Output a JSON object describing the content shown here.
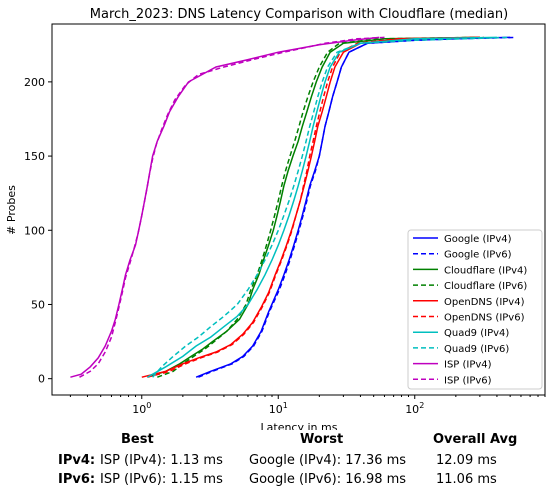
{
  "chart_data": {
    "type": "line",
    "title": "March_2023: DNS Latency Comparison with Cloudflare (median)",
    "xlabel": "Latency in ms",
    "ylabel": "# Probes",
    "xscale": "log",
    "xlim": [
      0.22,
      900
    ],
    "ylim": [
      -11,
      239
    ],
    "x_ticks": [
      {
        "value": 1,
        "label": "10^0"
      },
      {
        "value": 10,
        "label": "10^1"
      },
      {
        "value": 100,
        "label": "10^2"
      }
    ],
    "y_ticks": [
      0,
      50,
      100,
      150,
      200
    ],
    "grid": false,
    "legend_position": "lower right",
    "series": [
      {
        "name": "Google (IPv4)",
        "color": "#0000ff",
        "dashed": false,
        "points": [
          [
            2.5,
            1
          ],
          [
            3.2,
            5
          ],
          [
            4.5,
            10
          ],
          [
            5.5,
            15
          ],
          [
            6.5,
            22
          ],
          [
            7.5,
            32
          ],
          [
            8.5,
            45
          ],
          [
            10,
            60
          ],
          [
            11,
            70
          ],
          [
            12,
            80
          ],
          [
            13,
            90
          ],
          [
            14,
            100
          ],
          [
            15,
            110
          ],
          [
            16,
            120
          ],
          [
            17,
            130
          ],
          [
            18.5,
            140
          ],
          [
            20,
            150
          ],
          [
            21,
            160
          ],
          [
            22,
            170
          ],
          [
            23.5,
            180
          ],
          [
            25,
            190
          ],
          [
            27,
            200
          ],
          [
            29,
            210
          ],
          [
            33,
            220
          ],
          [
            45,
            226
          ],
          [
            100,
            228
          ],
          [
            200,
            229
          ],
          [
            500,
            230
          ]
        ]
      },
      {
        "name": "Google (IPv6)",
        "color": "#0000ff",
        "dashed": true,
        "points": [
          [
            2.6,
            1
          ],
          [
            3.3,
            5
          ],
          [
            4.6,
            10
          ],
          [
            5.6,
            15
          ],
          [
            6.6,
            22
          ],
          [
            7.6,
            32
          ],
          [
            8.6,
            45
          ],
          [
            10.2,
            60
          ],
          [
            11.2,
            70
          ],
          [
            12.2,
            80
          ],
          [
            13.2,
            90
          ],
          [
            14.2,
            100
          ],
          [
            15.2,
            110
          ],
          [
            16.2,
            120
          ],
          [
            17.2,
            130
          ],
          [
            18.7,
            140
          ],
          [
            20,
            150
          ],
          [
            21,
            160
          ],
          [
            22,
            170
          ],
          [
            23.5,
            180
          ],
          [
            25,
            190
          ],
          [
            27,
            200
          ],
          [
            29,
            210
          ],
          [
            33,
            220
          ],
          [
            45,
            226
          ],
          [
            100,
            228
          ],
          [
            200,
            229
          ],
          [
            550,
            230
          ]
        ]
      },
      {
        "name": "Cloudflare (IPv4)",
        "color": "#008000",
        "dashed": false,
        "points": [
          [
            1.1,
            1
          ],
          [
            1.5,
            5
          ],
          [
            1.9,
            10
          ],
          [
            2.3,
            15
          ],
          [
            2.8,
            20
          ],
          [
            3.3,
            25
          ],
          [
            4.2,
            32
          ],
          [
            5.2,
            40
          ],
          [
            6,
            50
          ],
          [
            6.5,
            60
          ],
          [
            7.2,
            70
          ],
          [
            7.8,
            80
          ],
          [
            8.5,
            90
          ],
          [
            9.2,
            100
          ],
          [
            9.8,
            110
          ],
          [
            10.4,
            120
          ],
          [
            11,
            130
          ],
          [
            11.8,
            140
          ],
          [
            12.8,
            150
          ],
          [
            14,
            160
          ],
          [
            15,
            170
          ],
          [
            16.2,
            180
          ],
          [
            17.5,
            190
          ],
          [
            19,
            200
          ],
          [
            21,
            210
          ],
          [
            24,
            220
          ],
          [
            30,
            226
          ],
          [
            60,
            229
          ],
          [
            300,
            230
          ]
        ]
      },
      {
        "name": "Cloudflare (IPv6)",
        "color": "#008000",
        "dashed": true,
        "points": [
          [
            1.3,
            1
          ],
          [
            1.7,
            5
          ],
          [
            2,
            10
          ],
          [
            2.4,
            15
          ],
          [
            2.9,
            20
          ],
          [
            3.4,
            25
          ],
          [
            4.2,
            32
          ],
          [
            5,
            40
          ],
          [
            5.8,
            50
          ],
          [
            6.3,
            60
          ],
          [
            7,
            70
          ],
          [
            7.6,
            80
          ],
          [
            8.2,
            90
          ],
          [
            8.8,
            100
          ],
          [
            9.4,
            110
          ],
          [
            10,
            120
          ],
          [
            10.6,
            130
          ],
          [
            11.3,
            140
          ],
          [
            12.2,
            150
          ],
          [
            13.2,
            160
          ],
          [
            14.2,
            170
          ],
          [
            15.2,
            180
          ],
          [
            16.5,
            190
          ],
          [
            18,
            200
          ],
          [
            20,
            210
          ],
          [
            23,
            220
          ],
          [
            28,
            226
          ],
          [
            55,
            229
          ],
          [
            280,
            230
          ]
        ]
      },
      {
        "name": "OpenDNS (IPv4)",
        "color": "#ff0000",
        "dashed": false,
        "points": [
          [
            1,
            1
          ],
          [
            1.5,
            5
          ],
          [
            2,
            10
          ],
          [
            2.6,
            14
          ],
          [
            3.5,
            18
          ],
          [
            4.5,
            23
          ],
          [
            5.5,
            30
          ],
          [
            6.5,
            38
          ],
          [
            7.5,
            48
          ],
          [
            8.5,
            58
          ],
          [
            9.5,
            70
          ],
          [
            10.5,
            80
          ],
          [
            11.5,
            90
          ],
          [
            12.5,
            100
          ],
          [
            13.5,
            110
          ],
          [
            14.5,
            120
          ],
          [
            15.5,
            130
          ],
          [
            16.5,
            140
          ],
          [
            17.5,
            150
          ],
          [
            18.5,
            160
          ],
          [
            19.5,
            170
          ],
          [
            21,
            180
          ],
          [
            22.5,
            190
          ],
          [
            24,
            200
          ],
          [
            26,
            210
          ],
          [
            30,
            220
          ],
          [
            40,
            226
          ],
          [
            80,
            229
          ],
          [
            300,
            230
          ]
        ]
      },
      {
        "name": "OpenDNS (IPv6)",
        "color": "#ff0000",
        "dashed": true,
        "points": [
          [
            1.1,
            1
          ],
          [
            1.6,
            5
          ],
          [
            2.1,
            10
          ],
          [
            2.7,
            14
          ],
          [
            3.6,
            18
          ],
          [
            4.6,
            23
          ],
          [
            5.6,
            30
          ],
          [
            6.6,
            38
          ],
          [
            7.6,
            48
          ],
          [
            8.6,
            58
          ],
          [
            9.6,
            70
          ],
          [
            10.6,
            80
          ],
          [
            11.6,
            90
          ],
          [
            12.6,
            100
          ],
          [
            13.5,
            110
          ],
          [
            14.5,
            120
          ],
          [
            15.3,
            130
          ],
          [
            16.2,
            140
          ],
          [
            17,
            150
          ],
          [
            18,
            160
          ],
          [
            19,
            170
          ],
          [
            20.2,
            180
          ],
          [
            21.5,
            190
          ],
          [
            23,
            200
          ],
          [
            25,
            210
          ],
          [
            28.5,
            220
          ],
          [
            38,
            226
          ],
          [
            75,
            229
          ],
          [
            320,
            230
          ]
        ]
      },
      {
        "name": "Quad9 (IPv4)",
        "color": "#00bfbf",
        "dashed": false,
        "points": [
          [
            1.1,
            1
          ],
          [
            1.5,
            8
          ],
          [
            2,
            15
          ],
          [
            2.5,
            22
          ],
          [
            3.2,
            28
          ],
          [
            4,
            35
          ],
          [
            5,
            42
          ],
          [
            6,
            50
          ],
          [
            7,
            60
          ],
          [
            8,
            70
          ],
          [
            9,
            80
          ],
          [
            10,
            90
          ],
          [
            11,
            100
          ],
          [
            12,
            110
          ],
          [
            13,
            120
          ],
          [
            14,
            130
          ],
          [
            15,
            140
          ],
          [
            16,
            150
          ],
          [
            17,
            160
          ],
          [
            18,
            170
          ],
          [
            19.2,
            180
          ],
          [
            20.5,
            190
          ],
          [
            22,
            200
          ],
          [
            24,
            210
          ],
          [
            28,
            220
          ],
          [
            40,
            226
          ],
          [
            100,
            229
          ],
          [
            400,
            230
          ]
        ]
      },
      {
        "name": "Quad9 (IPv6)",
        "color": "#00bfbf",
        "dashed": true,
        "points": [
          [
            1.2,
            1
          ],
          [
            1.4,
            8
          ],
          [
            1.7,
            15
          ],
          [
            2.1,
            22
          ],
          [
            2.6,
            28
          ],
          [
            3.2,
            35
          ],
          [
            4,
            42
          ],
          [
            5,
            50
          ],
          [
            6,
            60
          ],
          [
            7,
            70
          ],
          [
            8,
            80
          ],
          [
            9,
            90
          ],
          [
            10,
            100
          ],
          [
            11,
            110
          ],
          [
            12,
            120
          ],
          [
            13,
            130
          ],
          [
            14,
            140
          ],
          [
            15,
            150
          ],
          [
            16,
            160
          ],
          [
            17,
            170
          ],
          [
            18.2,
            180
          ],
          [
            19.5,
            190
          ],
          [
            21,
            200
          ],
          [
            23,
            210
          ],
          [
            27,
            220
          ],
          [
            40,
            226
          ],
          [
            100,
            228
          ],
          [
            480,
            230
          ]
        ]
      },
      {
        "name": "ISP (IPv4)",
        "color": "#bf00bf",
        "dashed": false,
        "points": [
          [
            0.3,
            1
          ],
          [
            0.36,
            3
          ],
          [
            0.42,
            8
          ],
          [
            0.48,
            14
          ],
          [
            0.54,
            22
          ],
          [
            0.6,
            32
          ],
          [
            0.64,
            40
          ],
          [
            0.68,
            50
          ],
          [
            0.72,
            60
          ],
          [
            0.76,
            70
          ],
          [
            0.82,
            80
          ],
          [
            0.9,
            90
          ],
          [
            0.95,
            100
          ],
          [
            1.0,
            110
          ],
          [
            1.05,
            120
          ],
          [
            1.1,
            130
          ],
          [
            1.15,
            140
          ],
          [
            1.2,
            150
          ],
          [
            1.3,
            160
          ],
          [
            1.45,
            170
          ],
          [
            1.6,
            180
          ],
          [
            1.85,
            190
          ],
          [
            2.2,
            200
          ],
          [
            3.5,
            210
          ],
          [
            6,
            215
          ],
          [
            10,
            220
          ],
          [
            20,
            225
          ],
          [
            35,
            228
          ],
          [
            55,
            230
          ]
        ]
      },
      {
        "name": "ISP (IPv6)",
        "color": "#bf00bf",
        "dashed": true,
        "points": [
          [
            0.35,
            1
          ],
          [
            0.42,
            5
          ],
          [
            0.48,
            10
          ],
          [
            0.54,
            18
          ],
          [
            0.6,
            28
          ],
          [
            0.64,
            38
          ],
          [
            0.68,
            48
          ],
          [
            0.72,
            58
          ],
          [
            0.76,
            68
          ],
          [
            0.82,
            78
          ],
          [
            0.88,
            88
          ],
          [
            0.94,
            98
          ],
          [
            0.99,
            108
          ],
          [
            1.04,
            118
          ],
          [
            1.09,
            128
          ],
          [
            1.14,
            138
          ],
          [
            1.2,
            148
          ],
          [
            1.28,
            158
          ],
          [
            1.4,
            168
          ],
          [
            1.55,
            178
          ],
          [
            1.75,
            188
          ],
          [
            2.1,
            198
          ],
          [
            2.6,
            205
          ],
          [
            4,
            210
          ],
          [
            6.5,
            215
          ],
          [
            11,
            220
          ],
          [
            22,
            226
          ],
          [
            38,
            229
          ],
          [
            60,
            230
          ]
        ]
      }
    ]
  },
  "summary": {
    "headers": {
      "best": "Best",
      "worst": "Worst",
      "avg": "Overall Avg"
    },
    "rows": [
      {
        "label": "IPv4",
        "best": "ISP (IPv4): 1.13 ms",
        "worst": "Google (IPv4): 17.36 ms",
        "avg": "12.09 ms"
      },
      {
        "label": "IPv6",
        "best": "ISP (IPv6): 1.15 ms",
        "worst": "Google (IPv6): 16.98 ms",
        "avg": "11.06 ms"
      }
    ],
    "separator": ":"
  }
}
